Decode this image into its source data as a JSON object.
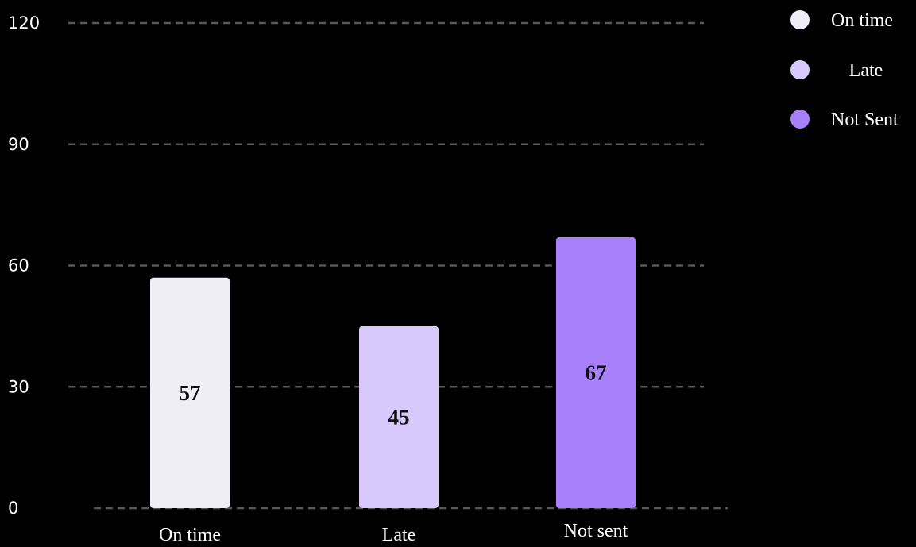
{
  "chart_data": {
    "type": "bar",
    "categories": [
      "On time",
      "Late",
      "Not sent"
    ],
    "values": [
      57,
      45,
      67
    ],
    "colors": [
      "#efedf5",
      "#d8c9fc",
      "#a880fb"
    ],
    "ylim": [
      0,
      120
    ],
    "yticks": [
      "0",
      "30",
      "60",
      "90",
      "120"
    ],
    "ytick_values": [
      0,
      30,
      60,
      90,
      120
    ],
    "grid": true,
    "legend_position": "top-right",
    "legend": [
      {
        "label": "On time",
        "color": "#efedf5"
      },
      {
        "label": "Late",
        "color": "#d8c9fc"
      },
      {
        "label": "Not Sent",
        "color": "#a880fb"
      }
    ]
  }
}
